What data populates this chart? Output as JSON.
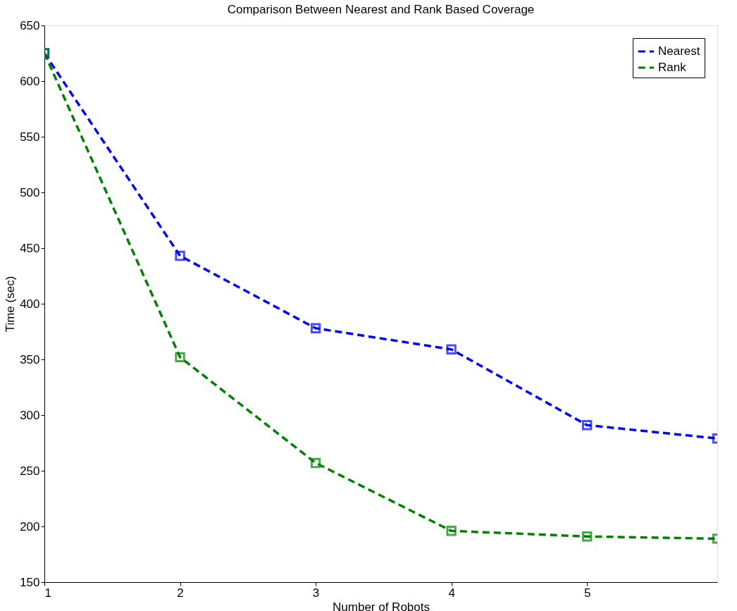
{
  "chart_data": {
    "type": "line",
    "title": "Comparison Between Nearest and Rank Based Coverage",
    "xlabel": "Number of Robots",
    "ylabel": "Time (sec)",
    "x": [
      1,
      2,
      3,
      4,
      5,
      5.96
    ],
    "series": [
      {
        "name": "Nearest",
        "color": "#0000ff",
        "values": [
          625,
          443,
          378,
          359,
          291,
          279
        ]
      },
      {
        "name": "Rank",
        "color": "#008000",
        "values": [
          625,
          352,
          257,
          196,
          191,
          189
        ]
      }
    ],
    "xlim": [
      1,
      5.96
    ],
    "xticks": [
      1,
      2,
      3,
      4,
      5
    ],
    "ylim": [
      150,
      650
    ],
    "yticks": [
      150,
      200,
      250,
      300,
      350,
      400,
      450,
      500,
      550,
      600,
      650
    ],
    "grid": false,
    "legend": "top right",
    "marker": "square",
    "line_style": "dashed"
  }
}
